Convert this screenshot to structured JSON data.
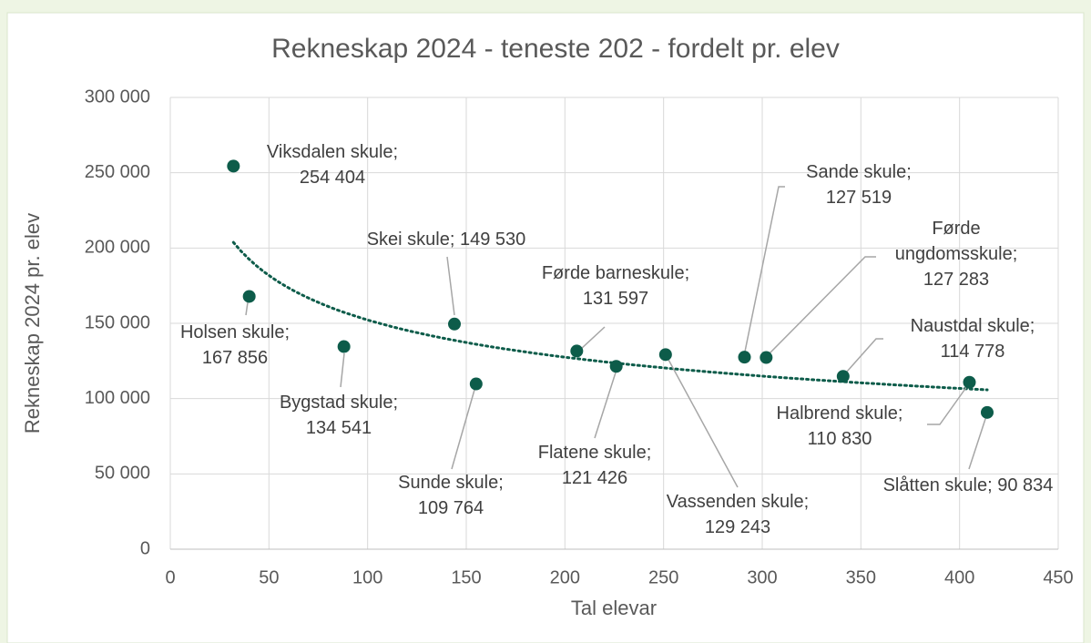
{
  "chart_data": {
    "type": "scatter",
    "title": "Rekneskap 2024 - teneste 202 - fordelt pr. elev",
    "x_label": "Tal elevar",
    "y_label": "Rekneskap 2024 pr. elev",
    "x": [
      32,
      40,
      88,
      144,
      155,
      206,
      226,
      251,
      291,
      302,
      341,
      405,
      414
    ],
    "values": [
      254404,
      167856,
      134541,
      149530,
      109764,
      131597,
      121426,
      129243,
      127519,
      127283,
      114778,
      110830,
      90834
    ],
    "value_labels": [
      "Viksdalen skule; 254 404",
      "Holsen skule; 167 856",
      "Bygstad skule; 134 541",
      "Skei skule; 149 530",
      "Sunde skule; 109 764",
      "Førde barneskule; 131 597",
      "Flatene skule; 121 426",
      "Vassenden skule; 129 243",
      "Sande skule; 127 519",
      "Førde ungdomsskule; 127 283",
      "Naustdal skule; 114 778",
      "Halbrend skule; 110 830",
      "Slåtten skule; 90 834"
    ],
    "color": "#0d5c4a",
    "trendline": "power",
    "xlim": [
      0,
      450
    ],
    "xticks": [
      0,
      50,
      100,
      150,
      200,
      250,
      300,
      350,
      400,
      450
    ],
    "ylim": [
      0,
      300000
    ],
    "yticks": [
      0,
      {
        "value": 50000,
        "label": "50 000"
      },
      {
        "value": 100000,
        "label": "100 000"
      },
      {
        "value": 150000,
        "label": "150 000"
      },
      {
        "value": 200000,
        "label": "200 000"
      },
      {
        "value": 250000,
        "label": "250 000"
      },
      {
        "value": 300000,
        "label": "300 000"
      }
    ],
    "grid": true
  }
}
